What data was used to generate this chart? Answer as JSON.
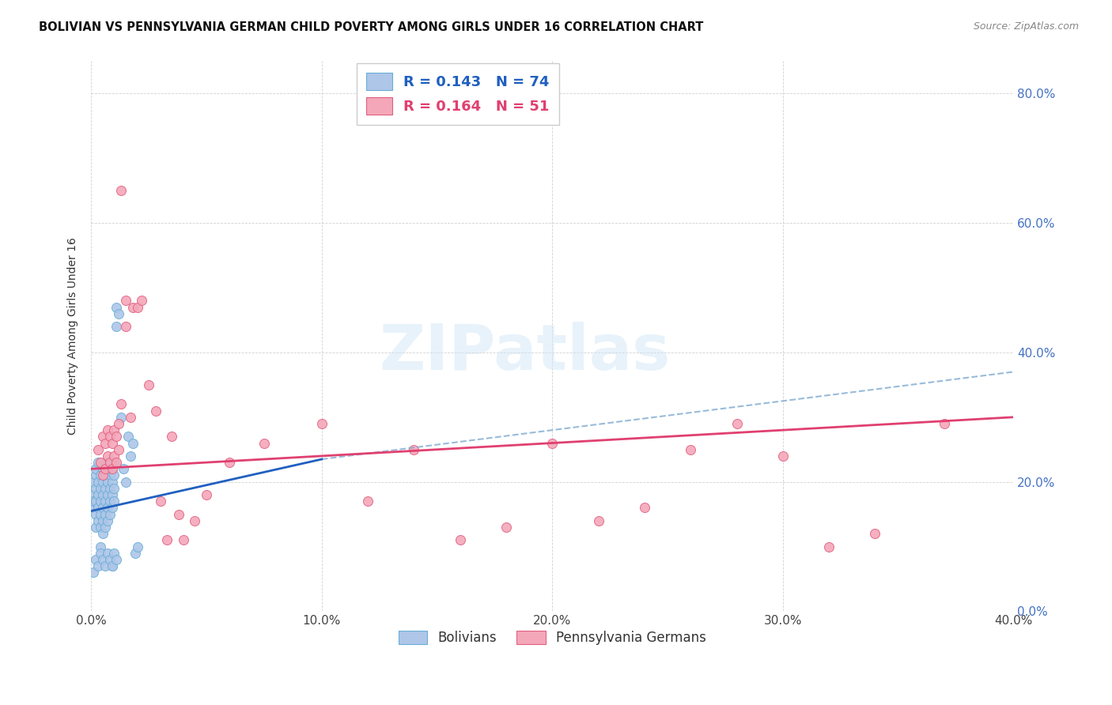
{
  "title": "BOLIVIAN VS PENNSYLVANIA GERMAN CHILD POVERTY AMONG GIRLS UNDER 16 CORRELATION CHART",
  "source": "Source: ZipAtlas.com",
  "ylabel": "Child Poverty Among Girls Under 16",
  "xlabel_ticks": [
    "0.0%",
    "10.0%",
    "20.0%",
    "30.0%",
    "40.0%"
  ],
  "ylabel_ticks": [
    "0.0%",
    "20.0%",
    "40.0%",
    "60.0%",
    "80.0%"
  ],
  "xlim": [
    0.0,
    0.4
  ],
  "ylim": [
    0.0,
    0.85
  ],
  "bolivian_R": "0.143",
  "bolivian_N": "74",
  "penn_german_R": "0.164",
  "penn_german_N": "51",
  "legend_labels": [
    "Bolivians",
    "Pennsylvania Germans"
  ],
  "bolivian_color": "#aec6e8",
  "penn_german_color": "#f4a7b9",
  "bolivian_edge": "#6aaed6",
  "penn_german_edge": "#e06080",
  "trend_bolivian_solid_color": "#2060c0",
  "trend_bolivian_dash_color": "#80aad0",
  "trend_penn_color": "#e04070",
  "watermark": "ZIPatlas",
  "bolivian_points": [
    [
      0.001,
      0.16
    ],
    [
      0.001,
      0.18
    ],
    [
      0.001,
      0.2
    ],
    [
      0.001,
      0.17
    ],
    [
      0.002,
      0.21
    ],
    [
      0.002,
      0.19
    ],
    [
      0.002,
      0.17
    ],
    [
      0.002,
      0.15
    ],
    [
      0.002,
      0.13
    ],
    [
      0.002,
      0.22
    ],
    [
      0.003,
      0.2
    ],
    [
      0.003,
      0.18
    ],
    [
      0.003,
      0.16
    ],
    [
      0.003,
      0.14
    ],
    [
      0.003,
      0.23
    ],
    [
      0.004,
      0.21
    ],
    [
      0.004,
      0.19
    ],
    [
      0.004,
      0.17
    ],
    [
      0.004,
      0.15
    ],
    [
      0.004,
      0.13
    ],
    [
      0.004,
      0.1
    ],
    [
      0.005,
      0.22
    ],
    [
      0.005,
      0.2
    ],
    [
      0.005,
      0.18
    ],
    [
      0.005,
      0.16
    ],
    [
      0.005,
      0.14
    ],
    [
      0.005,
      0.12
    ],
    [
      0.006,
      0.23
    ],
    [
      0.006,
      0.21
    ],
    [
      0.006,
      0.19
    ],
    [
      0.006,
      0.17
    ],
    [
      0.006,
      0.15
    ],
    [
      0.006,
      0.13
    ],
    [
      0.007,
      0.22
    ],
    [
      0.007,
      0.2
    ],
    [
      0.007,
      0.18
    ],
    [
      0.007,
      0.16
    ],
    [
      0.007,
      0.14
    ],
    [
      0.008,
      0.23
    ],
    [
      0.008,
      0.21
    ],
    [
      0.008,
      0.19
    ],
    [
      0.008,
      0.17
    ],
    [
      0.008,
      0.15
    ],
    [
      0.009,
      0.22
    ],
    [
      0.009,
      0.2
    ],
    [
      0.009,
      0.18
    ],
    [
      0.009,
      0.16
    ],
    [
      0.009,
      0.07
    ],
    [
      0.01,
      0.23
    ],
    [
      0.01,
      0.21
    ],
    [
      0.01,
      0.19
    ],
    [
      0.01,
      0.17
    ],
    [
      0.011,
      0.47
    ],
    [
      0.011,
      0.44
    ],
    [
      0.012,
      0.46
    ],
    [
      0.013,
      0.3
    ],
    [
      0.014,
      0.22
    ],
    [
      0.015,
      0.2
    ],
    [
      0.016,
      0.27
    ],
    [
      0.017,
      0.24
    ],
    [
      0.018,
      0.26
    ],
    [
      0.019,
      0.09
    ],
    [
      0.02,
      0.1
    ],
    [
      0.001,
      0.06
    ],
    [
      0.002,
      0.08
    ],
    [
      0.003,
      0.07
    ],
    [
      0.004,
      0.09
    ],
    [
      0.005,
      0.08
    ],
    [
      0.006,
      0.07
    ],
    [
      0.007,
      0.09
    ],
    [
      0.008,
      0.08
    ],
    [
      0.009,
      0.07
    ],
    [
      0.01,
      0.09
    ],
    [
      0.011,
      0.08
    ]
  ],
  "penn_german_points": [
    [
      0.003,
      0.25
    ],
    [
      0.004,
      0.23
    ],
    [
      0.005,
      0.27
    ],
    [
      0.005,
      0.21
    ],
    [
      0.006,
      0.26
    ],
    [
      0.006,
      0.22
    ],
    [
      0.007,
      0.28
    ],
    [
      0.007,
      0.24
    ],
    [
      0.008,
      0.27
    ],
    [
      0.008,
      0.23
    ],
    [
      0.009,
      0.26
    ],
    [
      0.009,
      0.22
    ],
    [
      0.01,
      0.28
    ],
    [
      0.01,
      0.24
    ],
    [
      0.011,
      0.27
    ],
    [
      0.011,
      0.23
    ],
    [
      0.012,
      0.29
    ],
    [
      0.012,
      0.25
    ],
    [
      0.013,
      0.32
    ],
    [
      0.013,
      0.65
    ],
    [
      0.015,
      0.44
    ],
    [
      0.015,
      0.48
    ],
    [
      0.017,
      0.3
    ],
    [
      0.018,
      0.47
    ],
    [
      0.02,
      0.47
    ],
    [
      0.022,
      0.48
    ],
    [
      0.025,
      0.35
    ],
    [
      0.028,
      0.31
    ],
    [
      0.03,
      0.17
    ],
    [
      0.033,
      0.11
    ],
    [
      0.035,
      0.27
    ],
    [
      0.038,
      0.15
    ],
    [
      0.04,
      0.11
    ],
    [
      0.045,
      0.14
    ],
    [
      0.05,
      0.18
    ],
    [
      0.06,
      0.23
    ],
    [
      0.075,
      0.26
    ],
    [
      0.1,
      0.29
    ],
    [
      0.12,
      0.17
    ],
    [
      0.14,
      0.25
    ],
    [
      0.16,
      0.11
    ],
    [
      0.18,
      0.13
    ],
    [
      0.2,
      0.26
    ],
    [
      0.22,
      0.14
    ],
    [
      0.24,
      0.16
    ],
    [
      0.26,
      0.25
    ],
    [
      0.28,
      0.29
    ],
    [
      0.3,
      0.24
    ],
    [
      0.32,
      0.1
    ],
    [
      0.34,
      0.12
    ],
    [
      0.37,
      0.29
    ]
  ],
  "bolivian_trend": [
    0.0,
    0.155,
    0.1,
    0.235
  ],
  "penn_trend": [
    0.0,
    0.22,
    0.4,
    0.3
  ],
  "bolivian_dash_trend": [
    0.1,
    0.235,
    0.4,
    0.37
  ]
}
